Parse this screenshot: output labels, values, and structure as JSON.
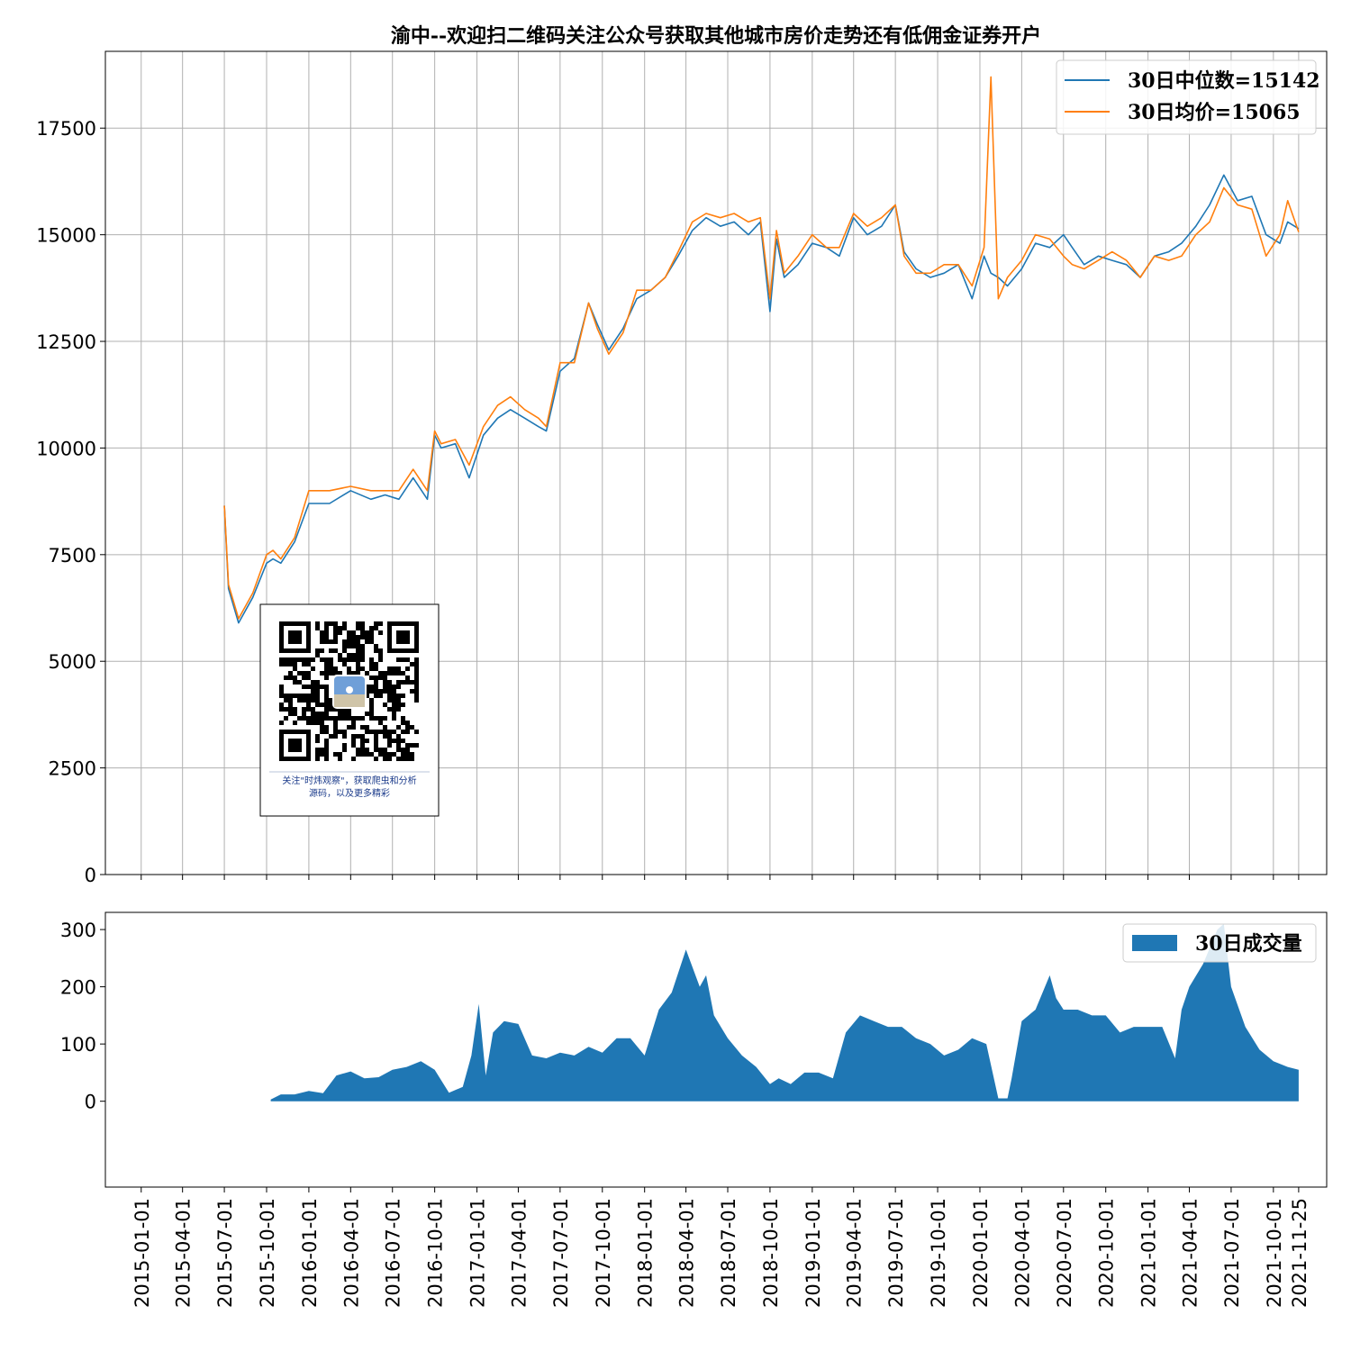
{
  "chart_data": [
    {
      "type": "line",
      "title": "渝中--欢迎扫二维码关注公众号获取其他城市房价走势还有低佣金证券开户",
      "ylim": [
        0,
        19300
      ],
      "yticks": [
        "0",
        "2500",
        "5000",
        "7500",
        "10000",
        "12500",
        "15000",
        "17500"
      ],
      "yticks_values": [
        0,
        2500,
        5000,
        7500,
        10000,
        12500,
        15000,
        17500
      ],
      "grid": true,
      "legend_position": "top-right",
      "x": [
        "2015-07-01",
        "2015-07-10",
        "2015-08-01",
        "2015-09-01",
        "2015-10-01",
        "2015-10-15",
        "2015-11-01",
        "2015-12-01",
        "2016-01-01",
        "2016-02-15",
        "2016-04-01",
        "2016-05-15",
        "2016-06-15",
        "2016-07-15",
        "2016-08-15",
        "2016-09-15",
        "2016-10-01",
        "2016-10-15",
        "2016-11-15",
        "2016-12-15",
        "2017-01-15",
        "2017-02-15",
        "2017-03-15",
        "2017-04-15",
        "2017-05-15",
        "2017-06-01",
        "2017-07-01",
        "2017-08-01",
        "2017-09-01",
        "2017-09-20",
        "2017-10-15",
        "2017-11-15",
        "2017-12-15",
        "2018-01-15",
        "2018-02-15",
        "2018-03-15",
        "2018-04-15",
        "2018-05-15",
        "2018-06-15",
        "2018-07-15",
        "2018-08-15",
        "2018-09-10",
        "2018-10-01",
        "2018-10-15",
        "2018-11-01",
        "2018-12-01",
        "2019-01-01",
        "2019-02-01",
        "2019-03-01",
        "2019-04-01",
        "2019-05-01",
        "2019-06-01",
        "2019-07-01",
        "2019-07-20",
        "2019-08-15",
        "2019-09-15",
        "2019-10-15",
        "2019-11-15",
        "2019-12-15",
        "2020-01-10",
        "2020-01-25",
        "2020-02-10",
        "2020-03-01",
        "2020-04-01",
        "2020-05-01",
        "2020-06-01",
        "2020-07-01",
        "2020-07-20",
        "2020-08-15",
        "2020-09-15",
        "2020-10-15",
        "2020-11-15",
        "2020-12-15",
        "2021-01-15",
        "2021-02-15",
        "2021-03-15",
        "2021-04-15",
        "2021-05-15",
        "2021-06-15",
        "2021-07-15",
        "2021-08-15",
        "2021-09-15",
        "2021-10-15",
        "2021-11-01",
        "2021-11-25"
      ],
      "series": [
        {
          "name": "30日中位数=15142",
          "color": "#1f77b4",
          "values": [
            8650,
            6700,
            5900,
            6500,
            7300,
            7400,
            7300,
            7800,
            8700,
            8700,
            9000,
            8800,
            8900,
            8800,
            9300,
            8800,
            10300,
            10000,
            10100,
            9300,
            10300,
            10700,
            10900,
            10700,
            10500,
            10400,
            11800,
            12100,
            13400,
            12900,
            12300,
            12800,
            13500,
            13700,
            14000,
            14500,
            15100,
            15400,
            15200,
            15300,
            15000,
            15300,
            13200,
            14900,
            14000,
            14300,
            14800,
            14700,
            14500,
            15400,
            15000,
            15200,
            15700,
            14600,
            14200,
            14000,
            14100,
            14300,
            13500,
            14500,
            14100,
            14000,
            13800,
            14200,
            14800,
            14700,
            15000,
            14700,
            14300,
            14500,
            14400,
            14300,
            14000,
            14500,
            14600,
            14800,
            15200,
            15700,
            16400,
            15800,
            15900,
            15000,
            14800,
            15300,
            15142
          ]
        },
        {
          "name": "30日均价=15065",
          "color": "#ff7f0e",
          "values": [
            8650,
            6800,
            6000,
            6600,
            7500,
            7600,
            7400,
            7900,
            9000,
            9000,
            9100,
            9000,
            9000,
            9000,
            9500,
            9000,
            10400,
            10100,
            10200,
            9600,
            10500,
            11000,
            11200,
            10900,
            10700,
            10500,
            12000,
            12000,
            13400,
            12800,
            12200,
            12700,
            13700,
            13700,
            14000,
            14600,
            15300,
            15500,
            15400,
            15500,
            15300,
            15400,
            13500,
            15100,
            14100,
            14500,
            15000,
            14700,
            14700,
            15500,
            15200,
            15400,
            15700,
            14500,
            14100,
            14100,
            14300,
            14300,
            13800,
            14700,
            18700,
            13500,
            14000,
            14400,
            15000,
            14900,
            14500,
            14300,
            14200,
            14400,
            14600,
            14400,
            14000,
            14500,
            14400,
            14500,
            15000,
            15300,
            16100,
            15700,
            15600,
            14500,
            15000,
            15800,
            15065
          ]
        }
      ]
    },
    {
      "type": "area",
      "ylim": [
        -150,
        330
      ],
      "yticks": [
        "0",
        "100",
        "200",
        "300"
      ],
      "yticks_values": [
        0,
        100,
        200,
        300
      ],
      "legend_position": "top-right",
      "x_tick_labels": [
        "2015-01-01",
        "2015-04-01",
        "2015-07-01",
        "2015-10-01",
        "2016-01-01",
        "2016-04-01",
        "2016-07-01",
        "2016-10-01",
        "2017-01-01",
        "2017-04-01",
        "2017-07-01",
        "2017-10-01",
        "2018-01-01",
        "2018-04-01",
        "2018-07-01",
        "2018-10-01",
        "2019-01-01",
        "2019-04-01",
        "2019-07-01",
        "2019-10-01",
        "2020-01-01",
        "2020-04-01",
        "2020-07-01",
        "2020-10-01",
        "2021-01-01",
        "2021-04-01",
        "2021-07-01",
        "2021-10-01",
        "2021-11-25"
      ],
      "x": [
        "2015-10-10",
        "2015-11-01",
        "2015-12-01",
        "2016-01-01",
        "2016-02-01",
        "2016-03-01",
        "2016-04-01",
        "2016-05-01",
        "2016-06-01",
        "2016-07-01",
        "2016-08-01",
        "2016-09-01",
        "2016-10-01",
        "2016-11-01",
        "2016-12-01",
        "2016-12-20",
        "2017-01-05",
        "2017-01-20",
        "2017-02-05",
        "2017-03-01",
        "2017-04-01",
        "2017-05-01",
        "2017-06-01",
        "2017-07-01",
        "2017-08-01",
        "2017-09-01",
        "2017-10-01",
        "2017-11-01",
        "2017-12-01",
        "2018-01-01",
        "2018-02-01",
        "2018-03-01",
        "2018-04-01",
        "2018-05-01",
        "2018-05-15",
        "2018-06-01",
        "2018-07-01",
        "2018-08-01",
        "2018-09-01",
        "2018-10-01",
        "2018-10-20",
        "2018-11-15",
        "2018-12-15",
        "2019-01-15",
        "2019-02-15",
        "2019-03-15",
        "2019-04-15",
        "2019-05-15",
        "2019-06-15",
        "2019-07-15",
        "2019-08-15",
        "2019-09-15",
        "2019-10-15",
        "2019-11-15",
        "2019-12-15",
        "2020-01-15",
        "2020-02-10",
        "2020-03-01",
        "2020-03-10",
        "2020-04-01",
        "2020-05-01",
        "2020-06-01",
        "2020-06-15",
        "2020-07-01",
        "2020-08-01",
        "2020-09-01",
        "2020-10-01",
        "2020-11-01",
        "2020-12-01",
        "2021-01-01",
        "2021-02-01",
        "2021-03-01",
        "2021-03-15",
        "2021-04-01",
        "2021-05-01",
        "2021-06-01",
        "2021-06-15",
        "2021-07-01",
        "2021-08-01",
        "2021-09-01",
        "2021-10-01",
        "2021-11-01",
        "2021-11-25"
      ],
      "series": [
        {
          "name": "30日成交量",
          "color": "#1f77b4",
          "values": [
            3,
            12,
            12,
            18,
            14,
            45,
            52,
            40,
            42,
            55,
            60,
            70,
            55,
            15,
            25,
            80,
            170,
            45,
            120,
            140,
            135,
            80,
            75,
            85,
            80,
            95,
            85,
            110,
            110,
            80,
            160,
            190,
            265,
            200,
            220,
            150,
            110,
            80,
            60,
            30,
            40,
            30,
            50,
            50,
            40,
            120,
            150,
            140,
            130,
            130,
            110,
            100,
            80,
            90,
            110,
            100,
            5,
            5,
            40,
            140,
            160,
            220,
            180,
            160,
            160,
            150,
            150,
            120,
            130,
            130,
            130,
            75,
            160,
            200,
            240,
            300,
            310,
            200,
            130,
            90,
            70,
            60,
            55
          ]
        }
      ]
    }
  ],
  "qr_card": {
    "caption_line1": "关注\"时炜观察\"，获取爬虫和分析",
    "caption_line2": "源码，以及更多精彩"
  }
}
